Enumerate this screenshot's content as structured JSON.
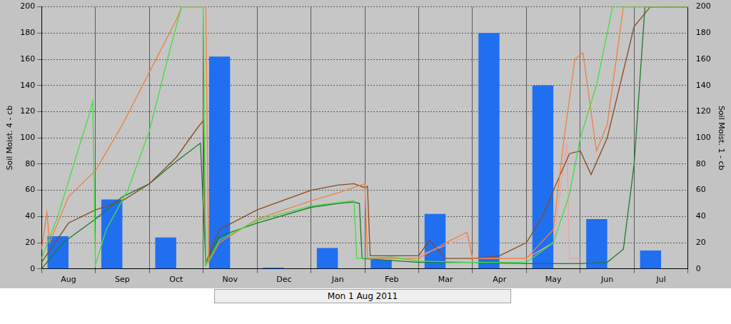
{
  "chart_data": {
    "type": "bar",
    "categories": [
      "Aug",
      "Sep",
      "Oct",
      "Nov",
      "Dec",
      "Jan",
      "Feb",
      "Mar",
      "Apr",
      "May",
      "Jun",
      "Jul"
    ],
    "ylabel": "Soil Moist. 4 - cb",
    "y2label": "Soil Moist. 1 - cb",
    "annotations": [
      "Mon 1 Aug 2011"
    ],
    "ylim": [
      0,
      200
    ],
    "yticks": [
      0,
      20,
      40,
      60,
      80,
      100,
      120,
      140,
      160,
      180,
      200
    ],
    "y2lim": [
      0,
      200
    ],
    "y2ticks": [
      0,
      20,
      40,
      60,
      80,
      100,
      120,
      140,
      160,
      180,
      200
    ],
    "xlim": [
      0,
      12
    ],
    "grid": true,
    "series": [
      {
        "type": "bar",
        "color": "#1f6ff0",
        "values": [
          25,
          53,
          24,
          162,
          1,
          16,
          7,
          42,
          180,
          140,
          38,
          14
        ]
      },
      {
        "type": "line",
        "axis": "y2",
        "color": "#40e040",
        "x": [
          0,
          0.3,
          0.6,
          0.9,
          0.95,
          1.0,
          1.2,
          1.6,
          2.0,
          2.4,
          2.6,
          3.0,
          3.05,
          3.3,
          4.0,
          5.0,
          5.8,
          5.85,
          6.5,
          7.0,
          8.0,
          9.0,
          9.5,
          9.8,
          10.0,
          10.3,
          10.6,
          12.0
        ],
        "values": [
          8,
          40,
          80,
          120,
          128,
          3,
          30,
          60,
          105,
          170,
          200,
          200,
          3,
          22,
          37,
          48,
          52,
          8,
          9,
          6,
          5,
          5,
          20,
          57,
          100,
          140,
          200,
          200
        ]
      },
      {
        "type": "line",
        "axis": "y2",
        "color": "#f08040",
        "x": [
          0,
          0.1,
          0.15,
          0.5,
          1.0,
          1.5,
          2.0,
          2.5,
          2.6,
          3.05,
          3.1,
          3.3,
          4.0,
          5.0,
          5.5,
          6.0,
          6.05,
          6.5,
          7.0,
          7.5,
          7.9,
          8.0,
          9.0,
          9.5,
          9.7,
          9.9,
          10.05,
          10.3,
          10.5,
          10.8,
          12.0
        ],
        "values": [
          15,
          43,
          20,
          55,
          75,
          110,
          150,
          190,
          200,
          200,
          5,
          20,
          38,
          52,
          58,
          65,
          8,
          8,
          8,
          20,
          28,
          8,
          8,
          30,
          100,
          160,
          165,
          90,
          110,
          200,
          200
        ]
      },
      {
        "type": "line",
        "axis": "y2",
        "color": "#8b4a1e",
        "x": [
          0,
          0.5,
          1.0,
          1.5,
          2.0,
          2.5,
          2.9,
          3.0,
          3.05,
          3.3,
          4.0,
          5.0,
          5.5,
          5.8,
          6.0,
          6.05,
          6.1,
          7.0,
          7.2,
          7.5,
          8.0,
          8.5,
          9.0,
          9.3,
          9.5,
          9.8,
          10.0,
          10.2,
          10.5,
          11.0,
          11.3,
          12.0
        ],
        "values": [
          5,
          35,
          45,
          52,
          65,
          85,
          108,
          113,
          5,
          30,
          45,
          60,
          64,
          65,
          62,
          63,
          10,
          10,
          22,
          8,
          8,
          10,
          20,
          40,
          60,
          88,
          90,
          72,
          100,
          185,
          200,
          200
        ]
      },
      {
        "type": "line",
        "axis": "y2",
        "color": "#1e7a28",
        "x": [
          0,
          0.4,
          1.0,
          1.5,
          2.0,
          2.5,
          2.95,
          3.05,
          3.3,
          4.0,
          5.0,
          5.5,
          5.8,
          5.9,
          5.95,
          7.0,
          8.0,
          9.0,
          10.0,
          10.5,
          10.8,
          11.0,
          11.2,
          12.0
        ],
        "values": [
          0,
          20,
          38,
          55,
          65,
          82,
          96,
          3,
          25,
          35,
          47,
          50,
          51,
          50,
          8,
          5,
          5,
          4,
          4,
          5,
          15,
          80,
          200,
          200
        ]
      },
      {
        "type": "line",
        "axis": "y2",
        "color": "#f0a0a0",
        "x": [
          7.0,
          7.5,
          7.9,
          8.0,
          9.0,
          9.5,
          9.75,
          9.8,
          10.0
        ],
        "values": [
          10,
          18,
          25,
          8,
          8,
          20,
          97,
          8,
          8
        ]
      }
    ]
  }
}
